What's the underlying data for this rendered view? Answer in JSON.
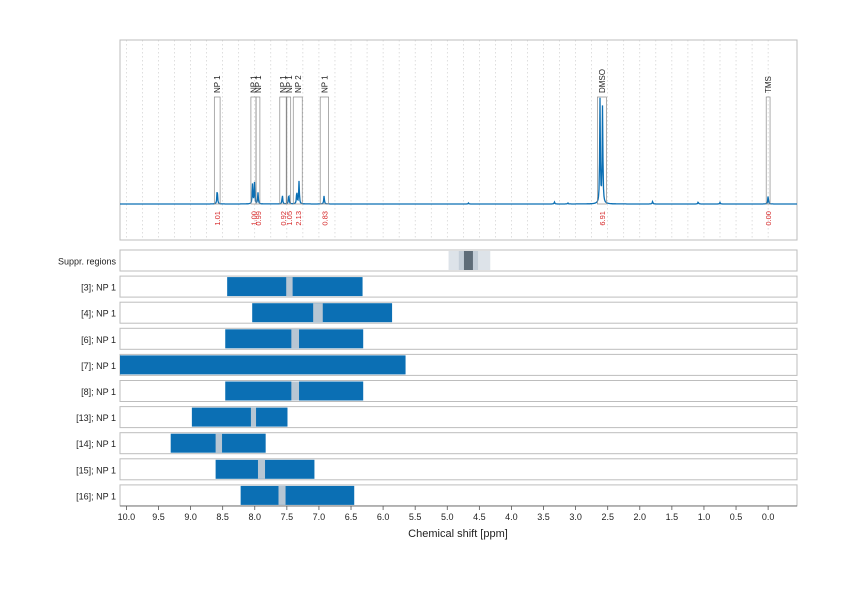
{
  "chart_data": {
    "type": "nmr-spectrum-with-region-bars",
    "xlabel": "Chemical shift [ppm]",
    "xlim": [
      10.1,
      -0.45
    ],
    "x_reversed": true,
    "xticks": [
      "10.0",
      "9.5",
      "9.0",
      "8.5",
      "8.0",
      "7.5",
      "7.0",
      "6.5",
      "6.0",
      "5.5",
      "5.0",
      "4.5",
      "4.0",
      "3.5",
      "3.0",
      "2.5",
      "2.0",
      "1.5",
      "1.0",
      "0.5",
      "0.0"
    ],
    "grid_vertical": true,
    "colors": {
      "spectrum": "#0b6fb4",
      "bar": "#0b6fb4",
      "gap": "#b7c6d3",
      "integral": "#d62728",
      "suppr_light": "#dde3e9",
      "suppr_mid": "#c4ced8",
      "suppr_dark": "#5e6c78",
      "frame": "#bdbdbd",
      "grid": "#c8c8c8"
    },
    "spectrum": {
      "peaks": [
        {
          "x": 8.585,
          "h": 0.15
        },
        {
          "x": 8.035,
          "h": 0.19
        },
        {
          "x": 8.005,
          "h": 0.21
        },
        {
          "x": 7.95,
          "h": 0.11
        },
        {
          "x": 7.57,
          "h": 0.09
        },
        {
          "x": 7.47,
          "h": 0.1
        },
        {
          "x": 7.345,
          "h": 0.13
        },
        {
          "x": 7.31,
          "h": 0.22
        },
        {
          "x": 6.92,
          "h": 0.08
        },
        {
          "x": 2.62,
          "h": 1.0
        },
        {
          "x": 2.58,
          "h": 0.95
        },
        {
          "x": 0.0,
          "h": 0.08
        },
        {
          "x": 4.67,
          "h": 0.01
        },
        {
          "x": 3.33,
          "h": 0.02
        },
        {
          "x": 3.12,
          "h": 0.01
        },
        {
          "x": 1.8,
          "h": 0.025
        },
        {
          "x": 1.09,
          "h": 0.02
        },
        {
          "x": 0.75,
          "h": 0.015
        }
      ],
      "annotations": [
        {
          "label": "NP 1",
          "integral": "1.01",
          "x0": 8.63,
          "x1": 8.54
        },
        {
          "label": "NP 1",
          "integral": "1.00",
          "x0": 8.06,
          "x1": 7.98
        },
        {
          "label": "NP 1",
          "integral": "0.99",
          "x0": 7.98,
          "x1": 7.92
        },
        {
          "label": "NP 1",
          "integral": "0.92",
          "x0": 7.61,
          "x1": 7.51
        },
        {
          "label": "NP 1",
          "integral": "1.05",
          "x0": 7.5,
          "x1": 7.44
        },
        {
          "label": "NP 2",
          "integral": "2.13",
          "x0": 7.4,
          "x1": 7.26
        },
        {
          "label": "NP 1",
          "integral": "0.83",
          "x0": 6.98,
          "x1": 6.85
        },
        {
          "label": "DMSO",
          "integral": "6.91",
          "x0": 2.66,
          "x1": 2.52
        },
        {
          "label": "TMS",
          "integral": "0.00",
          "x0": 0.03,
          "x1": -0.03
        }
      ]
    },
    "suppr_label": "Suppr. regions",
    "suppr": [
      {
        "x0": 4.98,
        "x1": 4.33,
        "level": "light"
      },
      {
        "x0": 4.82,
        "x1": 4.52,
        "level": "mid"
      },
      {
        "x0": 4.74,
        "x1": 4.6,
        "level": "dark"
      }
    ],
    "series": [
      {
        "name": "[3]; NP 1",
        "x0": 8.43,
        "x1": 6.32,
        "gap0": 7.51,
        "gap1": 7.41
      },
      {
        "name": "[4]; NP 1",
        "x0": 8.04,
        "x1": 5.86,
        "gap0": 7.09,
        "gap1": 6.94
      },
      {
        "name": "[6]; NP 1",
        "x0": 8.46,
        "x1": 6.31,
        "gap0": 7.43,
        "gap1": 7.31
      },
      {
        "name": "[7]; NP 1",
        "x0": 10.2,
        "x1": 5.65,
        "gap0": null,
        "gap1": null
      },
      {
        "name": "[8]; NP 1",
        "x0": 8.46,
        "x1": 6.31,
        "gap0": 7.43,
        "gap1": 7.31
      },
      {
        "name": "[13]; NP 1",
        "x0": 8.98,
        "x1": 7.49,
        "gap0": 8.06,
        "gap1": 7.98
      },
      {
        "name": "[14]; NP 1",
        "x0": 9.31,
        "x1": 7.83,
        "gap0": 8.61,
        "gap1": 8.51
      },
      {
        "name": "[15]; NP 1",
        "x0": 8.61,
        "x1": 7.07,
        "gap0": 7.95,
        "gap1": 7.84
      },
      {
        "name": "[16]; NP 1",
        "x0": 8.22,
        "x1": 6.45,
        "gap0": 7.63,
        "gap1": 7.52
      }
    ]
  }
}
